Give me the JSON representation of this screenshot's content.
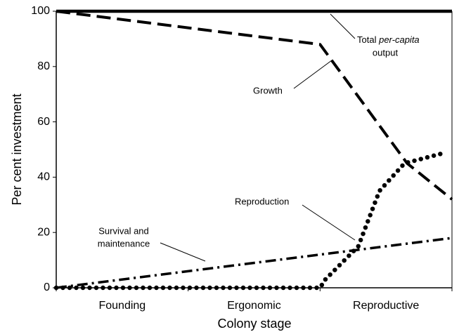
{
  "chart_data": {
    "type": "line",
    "x_label": "Colony stage",
    "y_label": "Per cent investment",
    "categories": [
      "Founding",
      "Ergonomic",
      "Reproductive"
    ],
    "xlim": [
      0,
      3
    ],
    "ylim": [
      0,
      100
    ],
    "yticks": [
      0,
      20,
      40,
      60,
      80,
      100
    ],
    "series": [
      {
        "name": "Total per-capita output",
        "style": "solid",
        "color": "#000000",
        "x": [
          0,
          3
        ],
        "values": [
          100,
          100
        ]
      },
      {
        "name": "Growth",
        "style": "dashed",
        "color": "#000000",
        "x": [
          0,
          2,
          2.66,
          3
        ],
        "values": [
          100,
          88,
          45,
          32
        ]
      },
      {
        "name": "Reproduction",
        "style": "dotted",
        "color": "#000000",
        "x": [
          0,
          2,
          2.04,
          2.29,
          2.45,
          2.64,
          2.96
        ],
        "values": [
          0,
          0,
          3,
          15,
          35,
          45,
          49
        ]
      },
      {
        "name": "Survival and maintenance",
        "style": "dashdot",
        "color": "#000000",
        "x": [
          0,
          3
        ],
        "values": [
          0,
          18
        ]
      }
    ],
    "annotations": [
      {
        "lines": [
          "Total",
          "per-capita",
          "output"
        ]
      },
      {
        "lines": [
          "Growth"
        ]
      },
      {
        "lines": [
          "Reproduction"
        ]
      },
      {
        "lines": [
          "Survival and",
          "maintenance"
        ]
      }
    ]
  }
}
